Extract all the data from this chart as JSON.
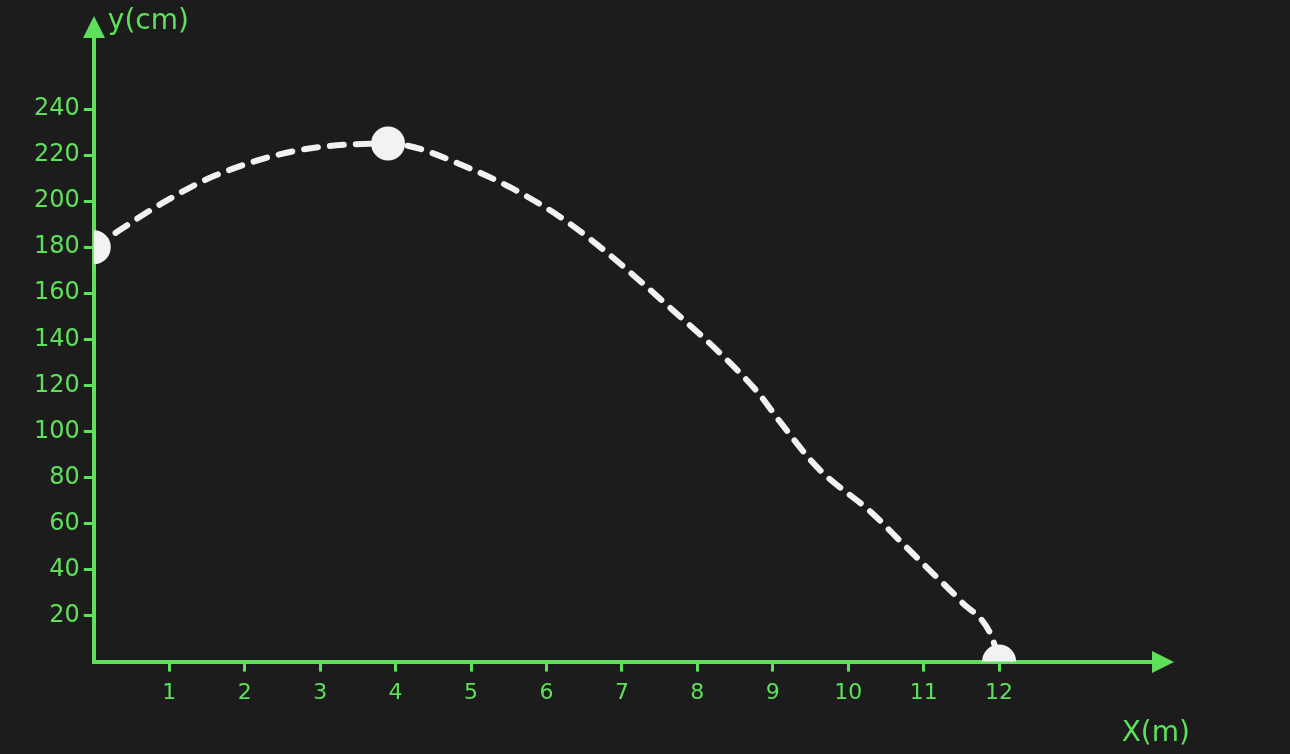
{
  "chart_data": {
    "type": "line",
    "xlabel": "X(m)",
    "ylabel": "y(cm)",
    "xlim": [
      0,
      14
    ],
    "ylim": [
      0,
      270
    ],
    "xticks": [
      1,
      2,
      3,
      4,
      5,
      6,
      7,
      8,
      9,
      10,
      11,
      12
    ],
    "yticks": [
      20,
      40,
      60,
      80,
      100,
      120,
      140,
      160,
      180,
      200,
      220,
      240
    ],
    "grid": false,
    "legend": false,
    "series": [
      {
        "color": "#f2f2f2",
        "line_style": "dashed",
        "marker": "none",
        "x": [
          0,
          0.9,
          1.6,
          2.7,
          3.9,
          5,
          6,
          6.6,
          7.8,
          8.3,
          8.8,
          9.1,
          9.6,
          10.3,
          10.7,
          11.1,
          11.5,
          11.9,
          12
        ],
        "values": [
          180,
          199,
          211,
          222,
          225,
          214,
          197,
          183,
          149,
          134,
          117,
          104,
          84,
          65,
          52,
          39,
          26,
          11,
          0
        ]
      },
      {
        "type": "scatter",
        "color": "#f2f2f2",
        "marker": "circle",
        "x": [
          0,
          3.9,
          12
        ],
        "values": [
          180,
          225,
          0
        ]
      }
    ]
  }
}
